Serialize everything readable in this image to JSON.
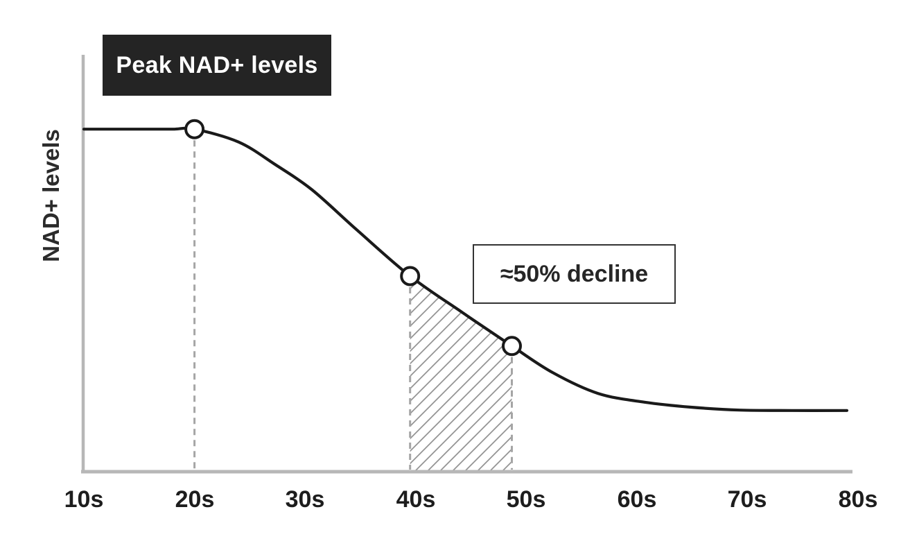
{
  "chart": {
    "badge": {
      "label": "Peak NAD+ levels"
    },
    "annotation": {
      "label": "≈50% decline"
    },
    "y_axis_label": "NAD+ levels",
    "x_tick_labels": [
      "10s",
      "20s",
      "30s",
      "40s",
      "50s",
      "60s",
      "70s",
      "80s"
    ]
  },
  "colors": {
    "curve": "#1a1a1a",
    "axis": "#b7b7b7",
    "guide": "#a5a5a5",
    "hatch": "#949494",
    "marker_fill": "#ffffff",
    "badge_bg": "#242424",
    "badge_fg": "#ffffff",
    "annotation_border": "#333333",
    "text": "#1d1d1d"
  },
  "chart_data": {
    "type": "line",
    "title": "",
    "xlabel": "",
    "ylabel": "NAD+ levels",
    "x_ticks": [
      10,
      20,
      30,
      40,
      50,
      60,
      70,
      80
    ],
    "x_tick_labels": [
      "10s",
      "20s",
      "30s",
      "40s",
      "50s",
      "60s",
      "70s",
      "80s"
    ],
    "xlim": [
      10,
      80
    ],
    "ylim": [
      0,
      100
    ],
    "grid": false,
    "legend": false,
    "y_units": "relative NAD+ level (unlabeled axis, 0-100 est.)",
    "series": [
      {
        "name": "NAD+ levels",
        "points": [
          [
            10,
            82.3
          ],
          [
            15,
            82.3
          ],
          [
            18,
            82.3
          ],
          [
            20,
            82.3
          ],
          [
            24,
            79.2
          ],
          [
            27.3,
            73.8
          ],
          [
            30.6,
            67.8
          ],
          [
            34.6,
            58.3
          ],
          [
            39.5,
            47.0
          ],
          [
            44.2,
            38.3
          ],
          [
            48.7,
            30.2
          ],
          [
            52.4,
            23.8
          ],
          [
            56.5,
            18.8
          ],
          [
            60.7,
            16.7
          ],
          [
            64.9,
            15.5
          ],
          [
            69.3,
            14.8
          ],
          [
            74,
            14.7
          ],
          [
            79,
            14.7
          ]
        ]
      }
    ],
    "markers": [
      {
        "age": 20,
        "level": 82.3,
        "label": "Peak NAD+ levels"
      },
      {
        "age": 39.5,
        "level": 47.0,
        "label": ""
      },
      {
        "age": 48.7,
        "level": 30.2,
        "label": "≈50% decline"
      }
    ],
    "dashed_guides_ages": [
      20,
      39.5,
      48.7
    ],
    "shaded_region": {
      "from_age": 39.5,
      "to_age": 48.7,
      "style": "hatched",
      "label": "≈50% decline"
    },
    "annotations": [
      {
        "text": "Peak NAD+ levels",
        "style": "dark-badge"
      },
      {
        "text": "≈50% decline",
        "style": "outlined-box"
      }
    ]
  }
}
